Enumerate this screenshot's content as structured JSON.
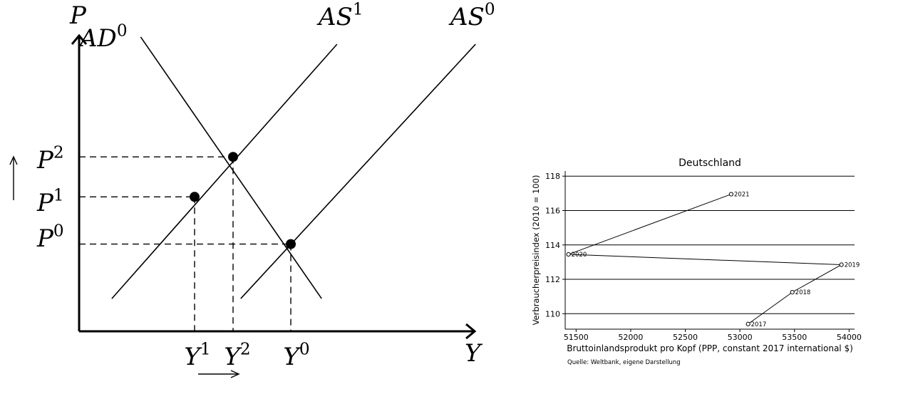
{
  "chart_data": [
    {
      "type": "line",
      "description_free": true,
      "axis_labels": {
        "y": "P",
        "x": "Y"
      },
      "curves": [
        {
          "label_base": "AD",
          "label_sup": "0",
          "from": [
            1.6,
            4.05
          ],
          "to": [
            6.3,
            0.45
          ]
        },
        {
          "label_base": "AS",
          "label_sup": "1",
          "from": [
            0.85,
            0.45
          ],
          "to": [
            6.7,
            3.95
          ]
        },
        {
          "label_base": "AS",
          "label_sup": "0",
          "from": [
            4.2,
            0.45
          ],
          "to": [
            10.3,
            3.95
          ]
        }
      ],
      "equilibria": [
        {
          "y_label_base": "Y",
          "y_label_sup": "1",
          "p_label_base": "P",
          "p_label_sup": "1",
          "x": 3.0,
          "y": 1.85
        },
        {
          "y_label_base": "Y",
          "y_label_sup": "2",
          "p_label_base": "P",
          "p_label_sup": "2",
          "x": 4.0,
          "y": 2.4
        },
        {
          "y_label_base": "Y",
          "y_label_sup": "0",
          "p_label_base": "P",
          "p_label_sup": "0",
          "x": 5.5,
          "y": 1.2
        }
      ],
      "xlim": [
        0,
        10
      ],
      "ylim": [
        0,
        4
      ]
    },
    {
      "type": "scatter",
      "connected": true,
      "title": "Deutschland",
      "xlabel": "Bruttoinlandsprodukt pro Kopf (PPP, constant 2017 international $)",
      "ylabel": "Verbraucherpreisindex (2010 = 100)",
      "source": "Quelle: Weltbank, eigene Darstellung",
      "x_ticks": [
        "51500",
        "52000",
        "52500",
        "53000",
        "53500",
        "54000"
      ],
      "y_ticks": [
        "110",
        "112",
        "114",
        "116",
        "118"
      ],
      "xlim": [
        51400,
        54050
      ],
      "ylim": [
        109.1,
        118.3
      ],
      "grid": "horizontal",
      "points": [
        {
          "label": "2017",
          "x": 53075,
          "y": 109.4
        },
        {
          "label": "2018",
          "x": 53480,
          "y": 111.25
        },
        {
          "label": "2019",
          "x": 53930,
          "y": 112.85
        },
        {
          "label": "2020",
          "x": 51430,
          "y": 113.45
        },
        {
          "label": "2021",
          "x": 52920,
          "y": 116.95
        }
      ]
    }
  ]
}
